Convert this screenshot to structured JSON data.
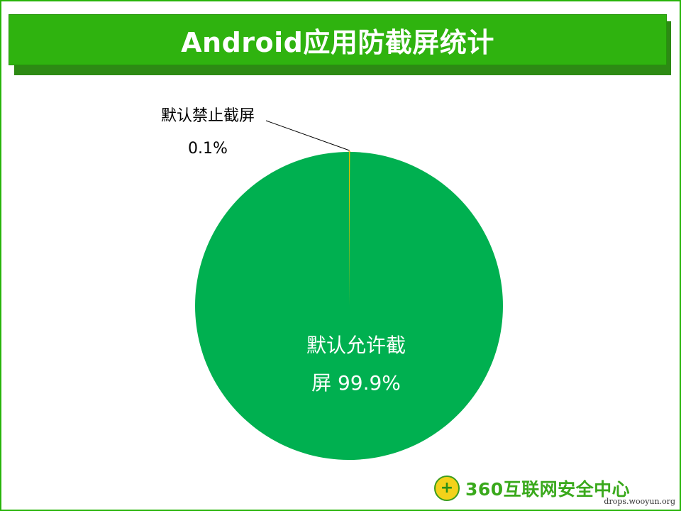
{
  "title": "Android应用防截屏统计",
  "chart_data": {
    "type": "pie",
    "title": "",
    "slices": [
      {
        "name": "默认禁止截屏",
        "percent_label": "0.1%",
        "value": 0.1,
        "color": "#d9c100"
      },
      {
        "name": "默认允许截屏",
        "percent_label": "99.9%",
        "value": 99.9,
        "color": "#00b050"
      }
    ],
    "labels": {
      "small_line1": "默认禁止截屏",
      "small_line2": "0.1%",
      "large_line1": "默认允许截",
      "large_line2": "屏 99.9%"
    }
  },
  "logo": {
    "text": "360互联网安全中心"
  },
  "watermark": "drops.wooyun.org"
}
